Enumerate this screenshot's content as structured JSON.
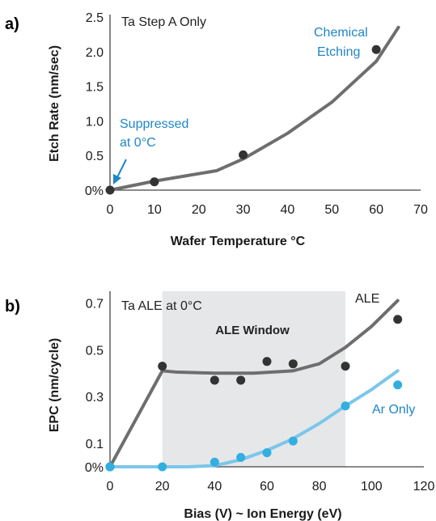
{
  "chart_data": [
    {
      "panel_label": "a)",
      "type": "line",
      "annotation": "Ta Step A Only",
      "xlabel": "Wafer Temperature °C",
      "ylabel": "Etch Rate (nm/sec)",
      "xlim": [
        0,
        70
      ],
      "ylim": [
        0,
        2.5
      ],
      "x_ticks": [
        0,
        10,
        20,
        30,
        40,
        50,
        60,
        70
      ],
      "y_ticks": [
        {
          "value": 0,
          "label": "0%"
        },
        {
          "value": 0.5,
          "label": "0.5"
        },
        {
          "value": 1.0,
          "label": "1.0"
        },
        {
          "value": 1.5,
          "label": "1.5"
        },
        {
          "value": 2.0,
          "label": "2.0"
        },
        {
          "value": 2.5,
          "label": "2.5"
        }
      ],
      "points": {
        "x": [
          0,
          10,
          30,
          60
        ],
        "y": [
          0,
          0.12,
          0.51,
          2.03
        ],
        "color": "#333333"
      },
      "trend": {
        "x": [
          0,
          10,
          24,
          30,
          40,
          50,
          60,
          65
        ],
        "y": [
          0,
          0.13,
          0.28,
          0.45,
          0.82,
          1.27,
          1.86,
          2.35
        ],
        "color": "#6e6e6e"
      },
      "callouts": [
        {
          "lines": [
            "Chemical",
            "Etching"
          ],
          "color": "#1f86c8"
        },
        {
          "lines": [
            "Suppressed",
            "at 0°C"
          ],
          "color": "#1f86c8"
        }
      ]
    },
    {
      "panel_label": "b)",
      "type": "line",
      "annotation": "Ta ALE at 0°C",
      "xlabel": "Bias (V) ~ Ion Energy (eV)",
      "ylabel": "EPC (nm/cycle)",
      "xlim": [
        0,
        120
      ],
      "ylim": [
        0,
        0.75
      ],
      "x_ticks": [
        0,
        20,
        40,
        60,
        80,
        100,
        120
      ],
      "y_ticks": [
        {
          "value": 0,
          "label": "0%"
        },
        {
          "value": 0.1,
          "label": "0.1"
        },
        {
          "value": 0.3,
          "label": "0.3"
        },
        {
          "value": 0.5,
          "label": "0.5"
        },
        {
          "value": 0.7,
          "label": "0.7"
        }
      ],
      "window": {
        "label": "ALE Window",
        "x_range": [
          20,
          90
        ],
        "color": "#e6e7e9"
      },
      "series": [
        {
          "name": "ALE",
          "color": "#333333",
          "line_color": "#6e6e6e",
          "points": {
            "x": [
              0,
              20,
              40,
              50,
              60,
              70,
              90,
              110
            ],
            "y": [
              0,
              0.43,
              0.37,
              0.37,
              0.45,
              0.44,
              0.43,
              0.63
            ]
          },
          "trend": {
            "x": [
              0,
              20,
              25,
              40,
              55,
              70,
              80,
              90,
              100,
              110
            ],
            "y": [
              0,
              0.41,
              0.405,
              0.4,
              0.4,
              0.41,
              0.44,
              0.51,
              0.6,
              0.71
            ]
          }
        },
        {
          "name": "Ar Only",
          "color": "#33aee0",
          "line_color": "#7cc6ea",
          "points": {
            "x": [
              0,
              20,
              40,
              50,
              60,
              70,
              90,
              110
            ],
            "y": [
              0,
              0,
              0.02,
              0.04,
              0.06,
              0.11,
              0.26,
              0.35
            ]
          },
          "trend": {
            "x": [
              0,
              30,
              40,
              50,
              60,
              70,
              80,
              90,
              100,
              110
            ],
            "y": [
              0,
              0,
              0.005,
              0.03,
              0.07,
              0.12,
              0.185,
              0.26,
              0.33,
              0.41
            ]
          }
        }
      ]
    }
  ]
}
